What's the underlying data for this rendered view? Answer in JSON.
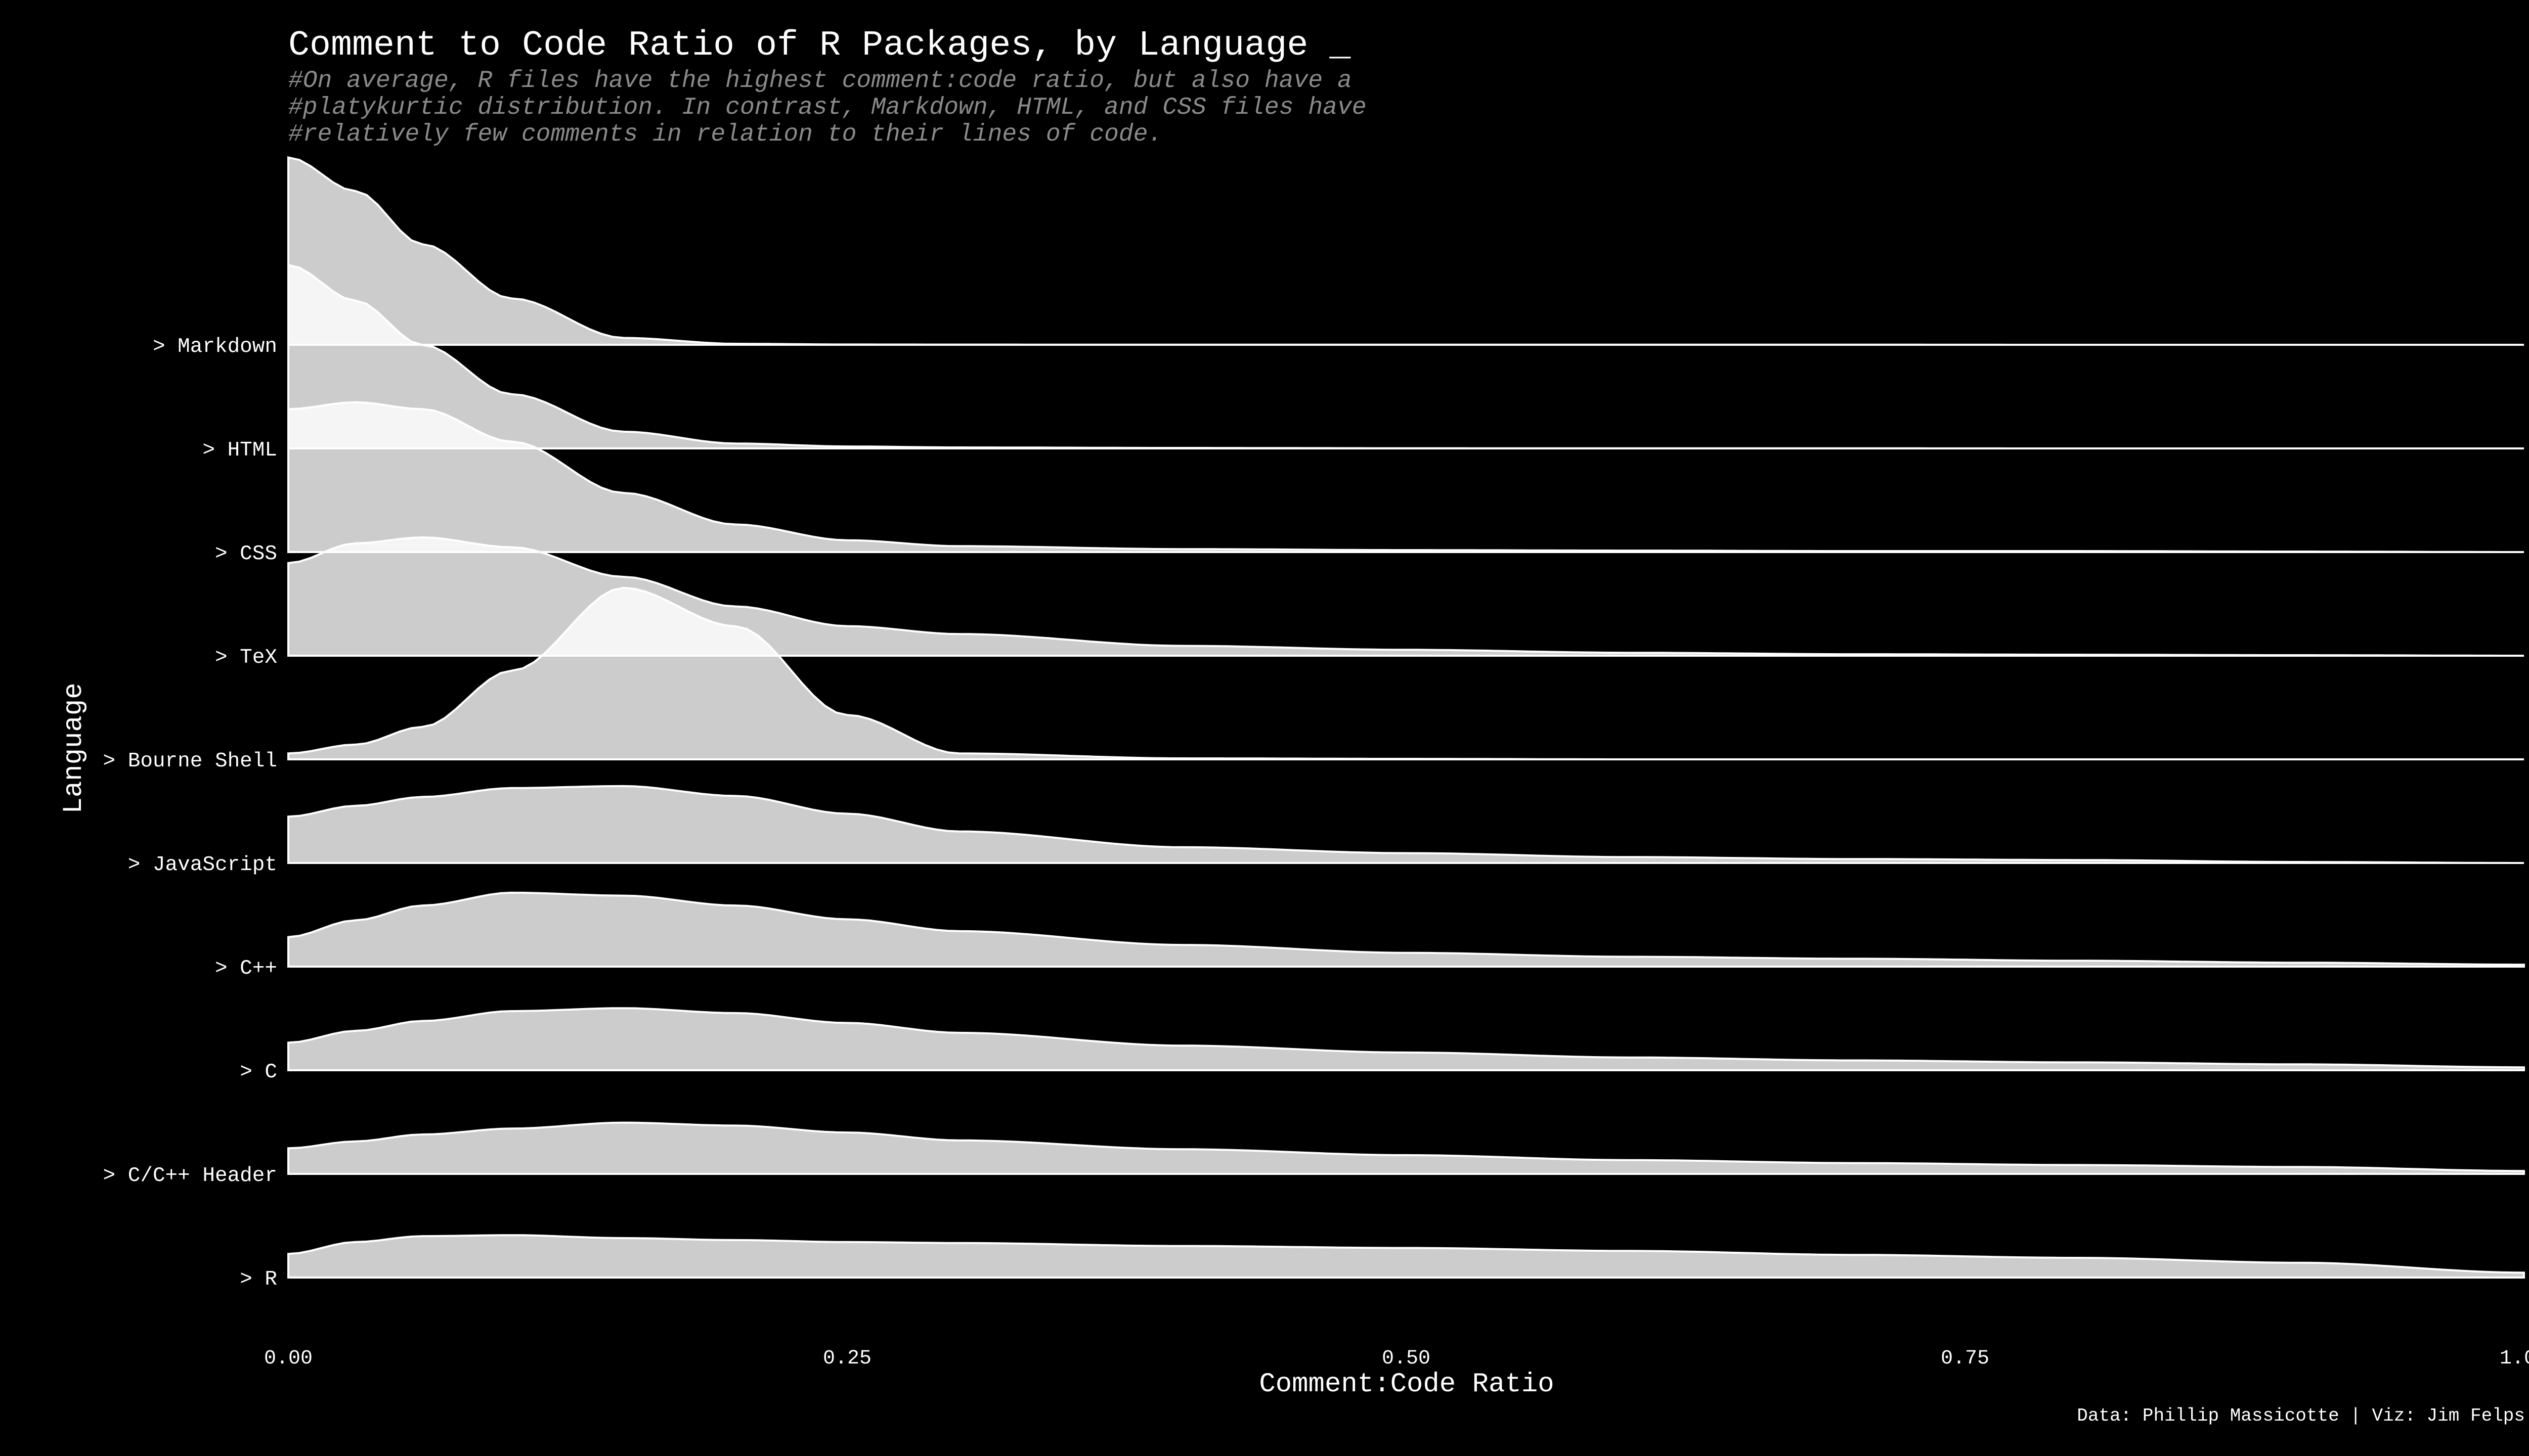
{
  "chart_data": {
    "type": "area",
    "title": "Comment to Code Ratio of R Packages, by Language _",
    "subtitle": [
      "#On average, R files have the highest comment:code ratio, but also have a",
      "#platykurtic distribution. In contrast, Markdown, HTML, and CSS files have",
      "#relatively few comments in relation to their lines of code."
    ],
    "xlabel": "Comment:Code Ratio",
    "ylabel": "Language",
    "xlim": [
      0,
      1
    ],
    "x_ticks": [
      "0.00",
      "0.25",
      "0.50",
      "0.75",
      "1.00"
    ],
    "x_tick_values": [
      0,
      0.25,
      0.5,
      0.75,
      1.0
    ],
    "caption": "Data: Phillip Massicotte | Viz: Jim Felps",
    "fill_color": "#cccccc",
    "line_color": "#ffffff",
    "background_color": "#000000",
    "x_grid": [
      0,
      0.03,
      0.06,
      0.1,
      0.15,
      0.2,
      0.25,
      0.3,
      0.4,
      0.5,
      0.6,
      0.7,
      0.8,
      0.9,
      1.0
    ],
    "series": [
      {
        "name": "> Markdown",
        "density": [
          1.9,
          1.56,
          1.02,
          0.47,
          0.07,
          0.01,
          0.003,
          0.002,
          0.001,
          0.001,
          0.001,
          0.001,
          0.0,
          0.0,
          0.0
        ]
      },
      {
        "name": "> HTML",
        "density": [
          1.86,
          1.5,
          1.05,
          0.55,
          0.17,
          0.05,
          0.02,
          0.01,
          0.005,
          0.002,
          0.001,
          0.001,
          0.0,
          0.0,
          0.0
        ]
      },
      {
        "name": "> CSS",
        "density": [
          1.45,
          1.52,
          1.45,
          1.12,
          0.6,
          0.28,
          0.12,
          0.06,
          0.03,
          0.02,
          0.015,
          0.01,
          0.01,
          0.005,
          0.0
        ]
      },
      {
        "name": "> TeX",
        "density": [
          0.94,
          1.14,
          1.2,
          1.1,
          0.8,
          0.5,
          0.3,
          0.22,
          0.1,
          0.06,
          0.03,
          0.015,
          0.01,
          0.005,
          0.0
        ]
      },
      {
        "name": "> Bourne Shell",
        "density": [
          0.06,
          0.15,
          0.33,
          0.9,
          1.74,
          1.35,
          0.45,
          0.06,
          0.01,
          0.005,
          0.0,
          0.0,
          0.0,
          0.0,
          0.0
        ]
      },
      {
        "name": "> JavaScript",
        "density": [
          0.47,
          0.58,
          0.67,
          0.76,
          0.78,
          0.68,
          0.5,
          0.32,
          0.16,
          0.1,
          0.06,
          0.04,
          0.03,
          0.01,
          0.0
        ]
      },
      {
        "name": "> C++",
        "density": [
          0.3,
          0.47,
          0.62,
          0.75,
          0.72,
          0.62,
          0.48,
          0.36,
          0.22,
          0.14,
          0.1,
          0.08,
          0.06,
          0.04,
          0.02
        ]
      },
      {
        "name": "> C",
        "density": [
          0.28,
          0.4,
          0.5,
          0.6,
          0.63,
          0.58,
          0.48,
          0.38,
          0.25,
          0.18,
          0.13,
          0.1,
          0.08,
          0.06,
          0.03
        ]
      },
      {
        "name": "> C/C++ Header",
        "density": [
          0.26,
          0.33,
          0.4,
          0.46,
          0.52,
          0.49,
          0.42,
          0.34,
          0.25,
          0.19,
          0.14,
          0.11,
          0.09,
          0.07,
          0.03
        ]
      },
      {
        "name": "> R",
        "density": [
          0.24,
          0.36,
          0.42,
          0.43,
          0.4,
          0.38,
          0.36,
          0.35,
          0.32,
          0.3,
          0.27,
          0.23,
          0.2,
          0.15,
          0.05
        ]
      }
    ]
  }
}
